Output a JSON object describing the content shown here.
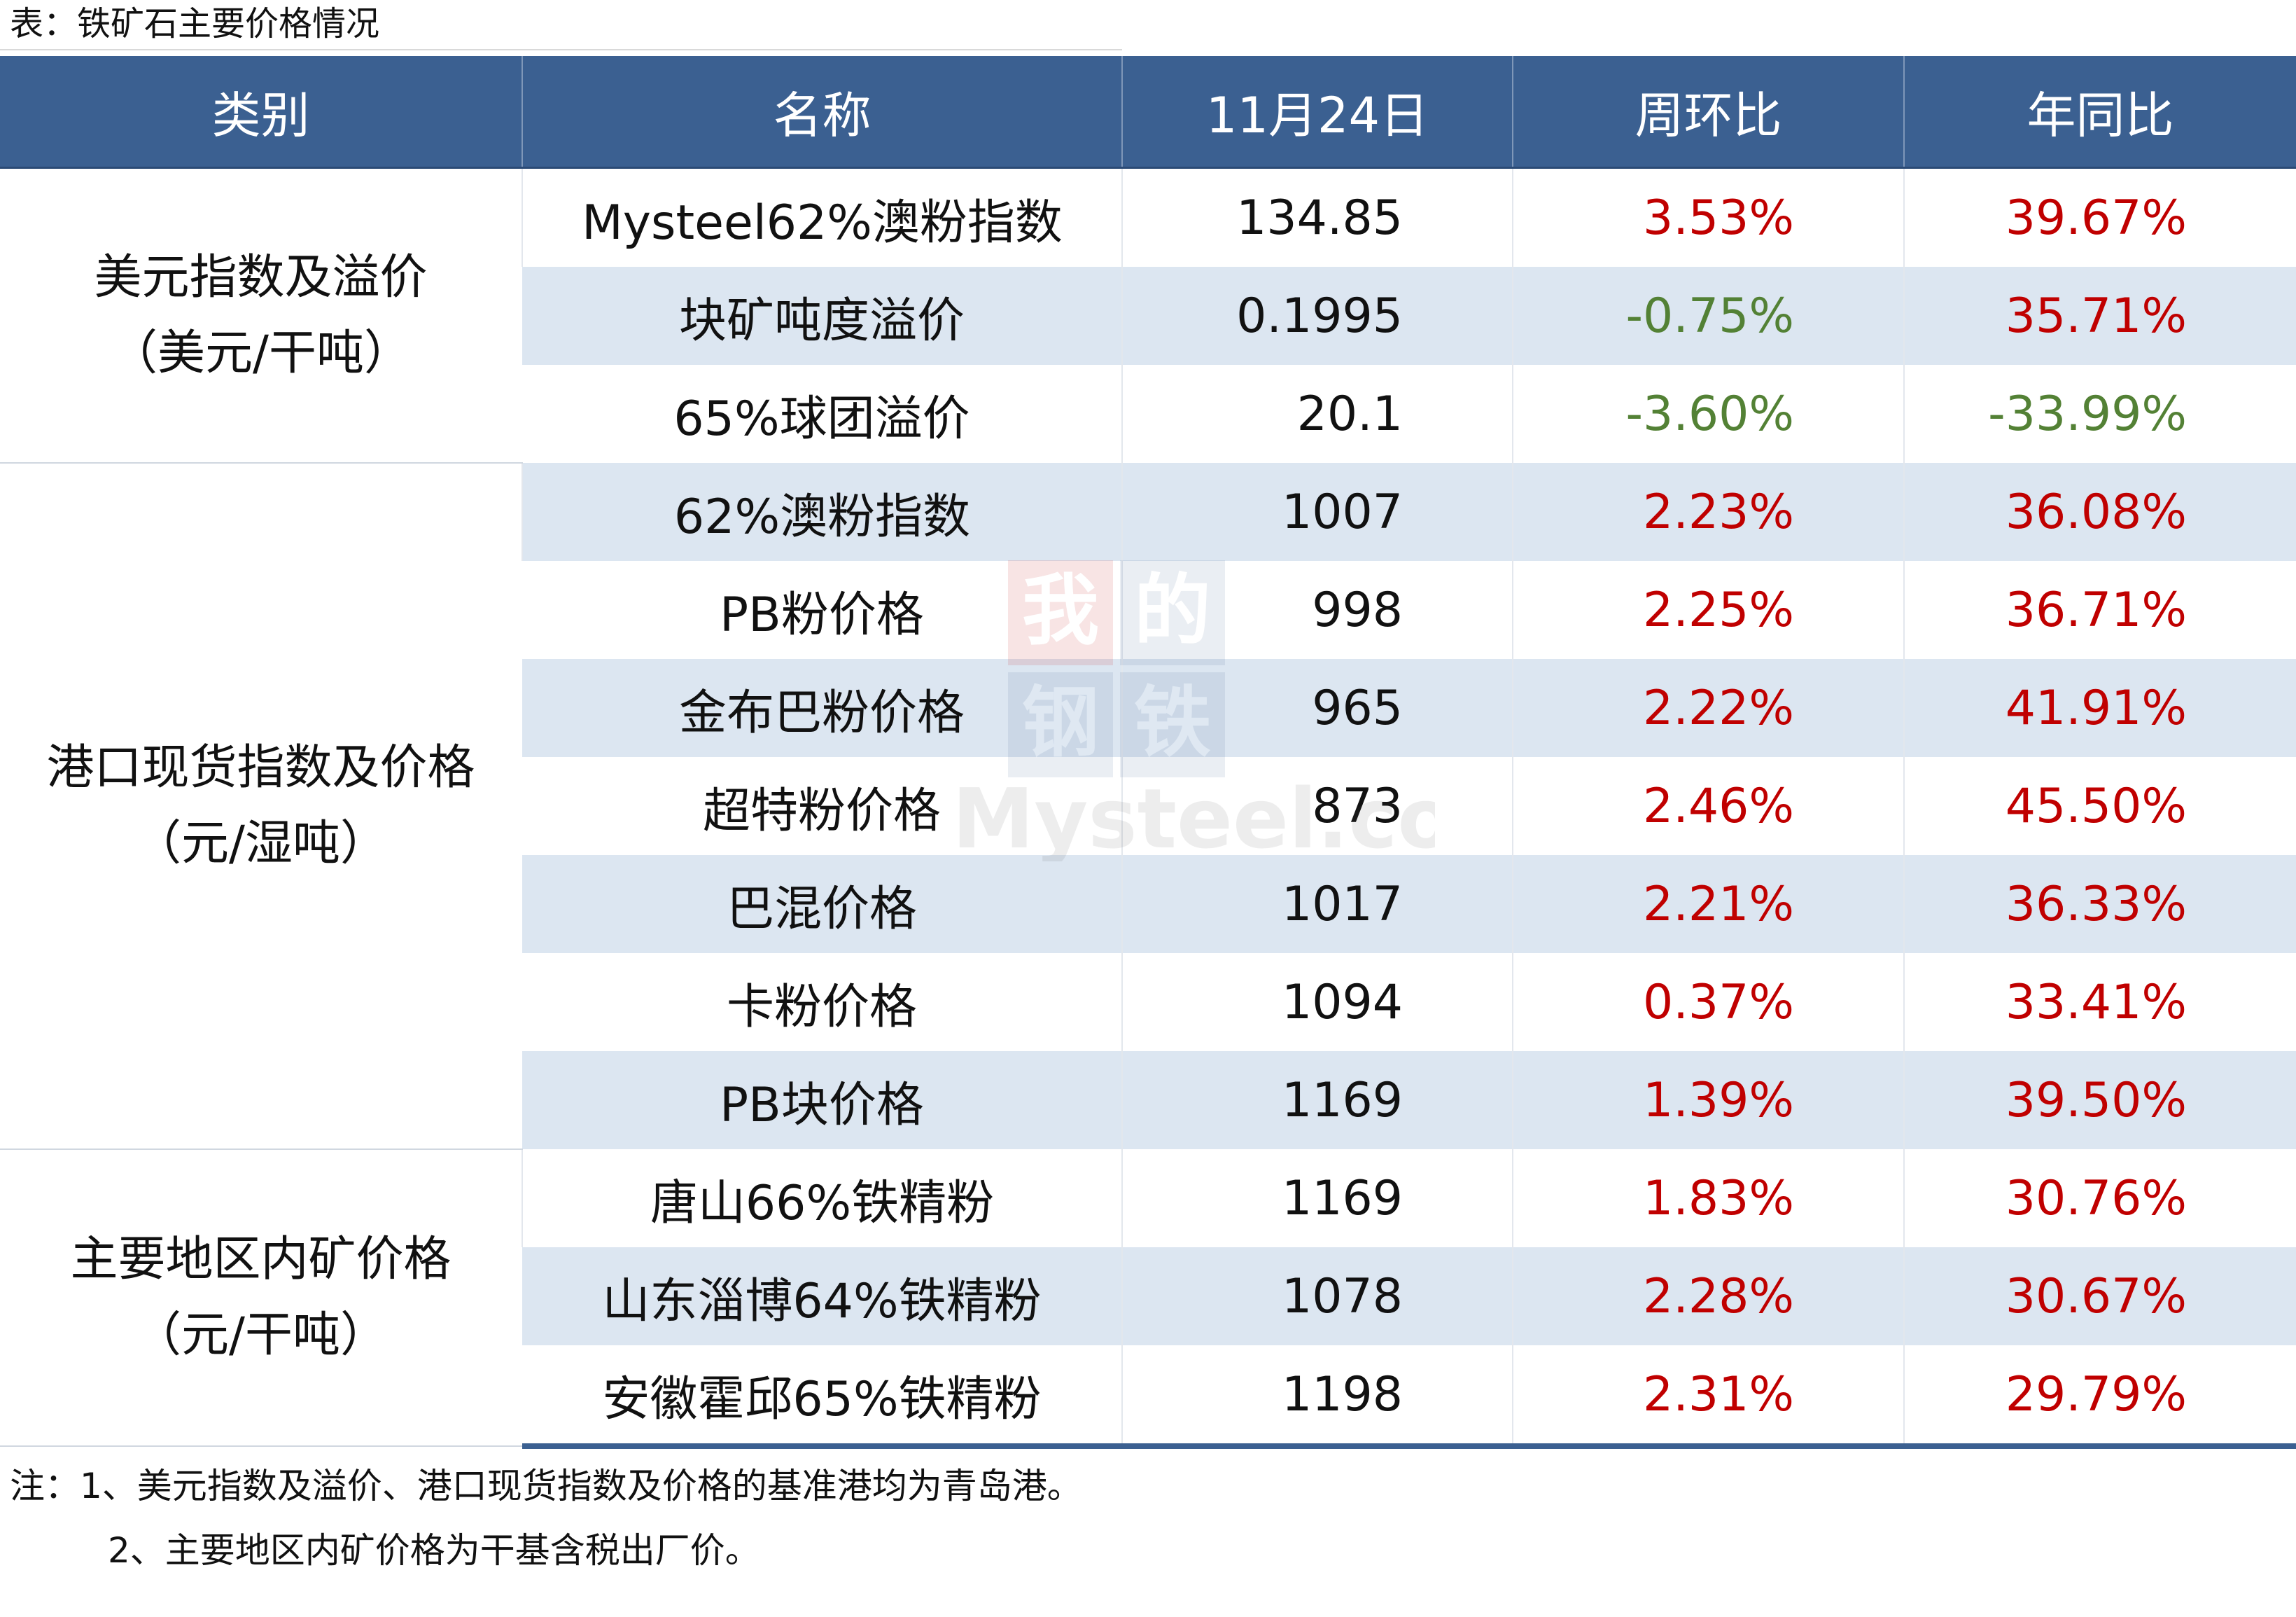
{
  "caption": "表：铁矿石主要价格情况",
  "headers": [
    "类别",
    "名称",
    "11月24日",
    "周环比",
    "年同比"
  ],
  "groups": [
    {
      "category_line1": "美元指数及溢价",
      "category_line2": "（美元/干吨）",
      "rows": [
        {
          "name": "Mysteel62%澳粉指数",
          "value": "134.85",
          "wow": "3.53%",
          "yoy": "39.67%"
        },
        {
          "name": "块矿吨度溢价",
          "value": "0.1995",
          "wow": "-0.75%",
          "yoy": "35.71%"
        },
        {
          "name": "65%球团溢价",
          "value": "20.1",
          "wow": "-3.60%",
          "yoy": "-33.99%"
        }
      ]
    },
    {
      "category_line1": "港口现货指数及价格",
      "category_line2": "（元/湿吨）",
      "rows": [
        {
          "name": "62%澳粉指数",
          "value": "1007",
          "wow": "2.23%",
          "yoy": "36.08%"
        },
        {
          "name": "PB粉价格",
          "value": "998",
          "wow": "2.25%",
          "yoy": "36.71%"
        },
        {
          "name": "金布巴粉价格",
          "value": "965",
          "wow": "2.22%",
          "yoy": "41.91%"
        },
        {
          "name": "超特粉价格",
          "value": "873",
          "wow": "2.46%",
          "yoy": "45.50%"
        },
        {
          "name": "巴混价格",
          "value": "1017",
          "wow": "2.21%",
          "yoy": "36.33%"
        },
        {
          "name": "卡粉价格",
          "value": "1094",
          "wow": "0.37%",
          "yoy": "33.41%"
        },
        {
          "name": "PB块价格",
          "value": "1169",
          "wow": "1.39%",
          "yoy": "39.50%"
        }
      ]
    },
    {
      "category_line1": "主要地区内矿价格",
      "category_line2": "（元/干吨）",
      "rows": [
        {
          "name": "唐山66%铁精粉",
          "value": "1169",
          "wow": "1.83%",
          "yoy": "30.76%"
        },
        {
          "name": "山东淄博64%铁精粉",
          "value": "1078",
          "wow": "2.28%",
          "yoy": "30.67%"
        },
        {
          "name": "安徽霍邱65%铁精粉",
          "value": "1198",
          "wow": "2.31%",
          "yoy": "29.79%"
        }
      ]
    }
  ],
  "notes": [
    "注：1、美元指数及溢价、港口现货指数及价格的基准港均为青岛港。",
    "2、主要地区内矿价格为干基含税出厂价。"
  ],
  "watermark": {
    "line1": "我的",
    "line2": "钢铁",
    "line3": "Mysteel.com"
  },
  "colors": {
    "header_bg": "#3b6091",
    "shade_bg": "#dce6f1",
    "positive": "#c00000",
    "negative": "#538135"
  }
}
